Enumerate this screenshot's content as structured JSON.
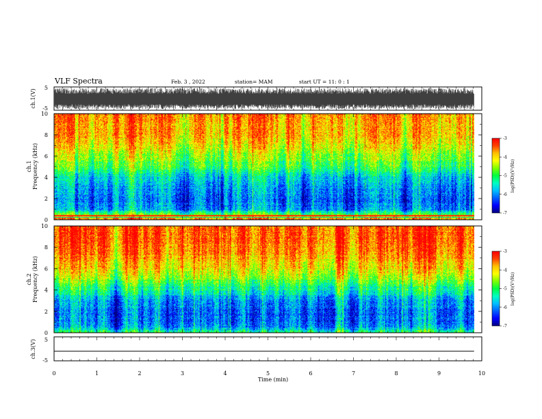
{
  "header": {
    "title": "VLF Spectra",
    "date": "Feb. 3  , 2022",
    "station": "station= MAM",
    "start": "start  UT  =   11: 0  : 1"
  },
  "colors": {
    "spectrum_scale": [
      "#000080",
      "#0000ff",
      "#0060ff",
      "#00c0ff",
      "#00ffc0",
      "#00ff40",
      "#80ff00",
      "#ffff00",
      "#ffc000",
      "#ff4000",
      "#ff0000"
    ]
  },
  "chart_data": [
    {
      "type": "line",
      "panel": "ch1-waveform",
      "ylabel": "ch.1(V)",
      "yticks": [
        "5",
        "-5"
      ],
      "ylim": [
        -5,
        5
      ],
      "xlim": [
        0,
        10
      ],
      "series": [
        {
          "values_description_rendering": "dense oscillation",
          "amplitude": [
            -4.5,
            4.5
          ],
          "x_end": 9.82
        }
      ]
    },
    {
      "type": "heatmap",
      "panel": "ch1-spectrogram",
      "ylabel_line1": "ch.1",
      "ylabel_line2": "Frequency  (kHz)",
      "yticks": [
        "0",
        "2",
        "4",
        "6",
        "8",
        "10"
      ],
      "ylim": [
        0,
        10
      ],
      "xlim": [
        0,
        10
      ],
      "x_end": 9.82,
      "zlabel": "log(PSD)(V²/Hz)",
      "zticks": [
        "-3",
        "-4",
        "-5",
        "-6",
        "-7"
      ],
      "zlim": [
        -7,
        -3
      ],
      "profile_khz": [
        0,
        0.5,
        1,
        2,
        3,
        4,
        5,
        6,
        7,
        8,
        9,
        10
      ],
      "profile_log_psd": [
        -3.4,
        -4.6,
        -5.9,
        -6.1,
        -5.9,
        -5.6,
        -4.9,
        -4.5,
        -4.1,
        -3.8,
        -3.7,
        -3.6
      ]
    },
    {
      "type": "heatmap",
      "panel": "ch2-spectrogram",
      "ylabel_line1": "ch.2",
      "ylabel_line2": "Frequency  (kHz)",
      "yticks": [
        "0",
        "2",
        "4",
        "6",
        "8",
        "10"
      ],
      "ylim": [
        0,
        10
      ],
      "xlim": [
        0,
        10
      ],
      "x_end": 9.82,
      "zlabel": "log(PSD)(V²/Hz)",
      "zticks": [
        "-3",
        "-4",
        "-5",
        "-6",
        "-7"
      ],
      "zlim": [
        -7,
        -3
      ],
      "profile_khz": [
        0,
        0.5,
        1,
        2,
        3,
        4,
        5,
        6,
        7,
        8,
        9,
        10
      ],
      "profile_log_psd": [
        -4.9,
        -5.9,
        -6.1,
        -6.1,
        -5.9,
        -5.3,
        -4.6,
        -4.1,
        -3.7,
        -3.5,
        -3.4,
        -3.4
      ]
    },
    {
      "type": "line",
      "panel": "ch3-waveform",
      "ylabel": "ch.3(V)",
      "yticks": [
        "5",
        "-5"
      ],
      "ylim": [
        -5,
        5
      ],
      "xlim": [
        0,
        10
      ],
      "series": [
        {
          "values": [
            0,
            0
          ]
        }
      ]
    }
  ],
  "xaxis": {
    "label": "Time  (min)",
    "ticks": [
      "0",
      "1",
      "2",
      "3",
      "4",
      "5",
      "6",
      "7",
      "8",
      "9",
      "10"
    ]
  }
}
